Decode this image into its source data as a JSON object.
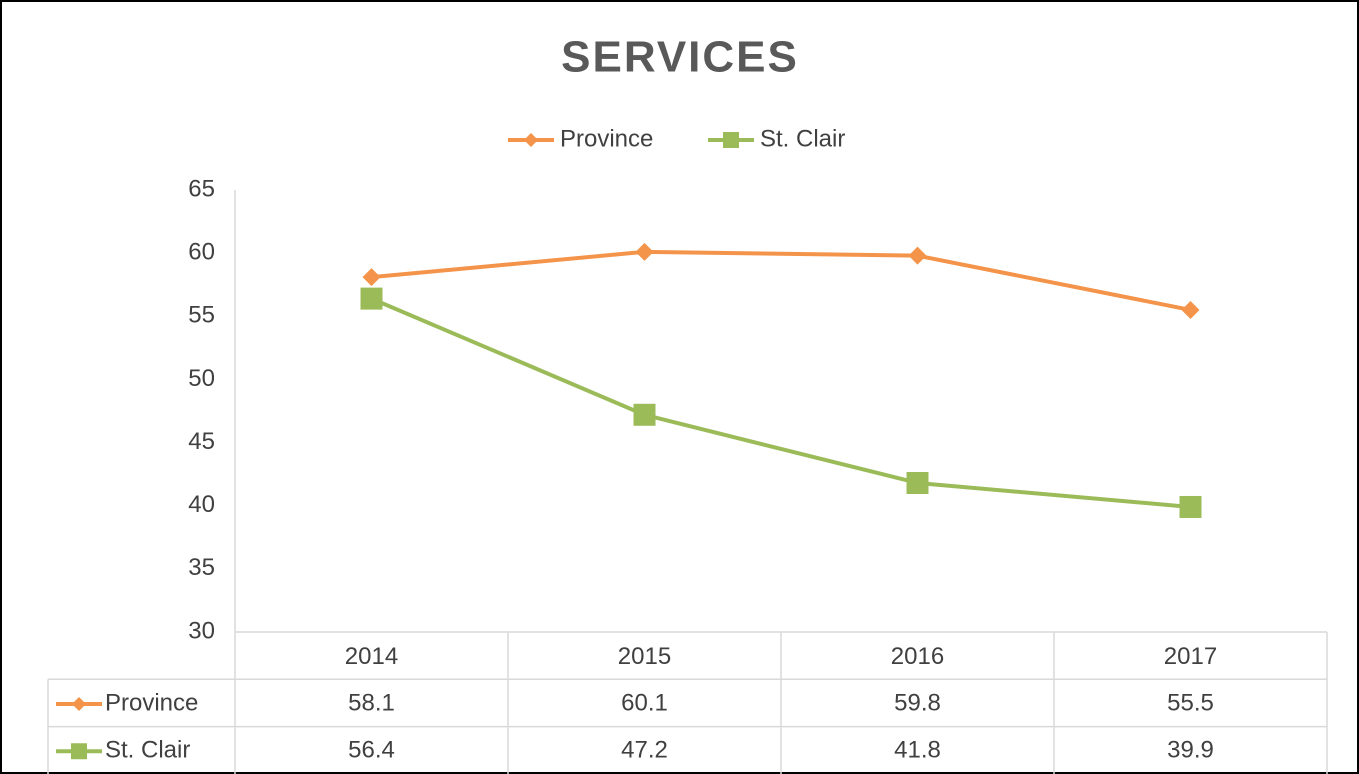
{
  "chart_data": {
    "type": "line",
    "title": "SERVICES",
    "categories": [
      "2014",
      "2015",
      "2016",
      "2017"
    ],
    "series": [
      {
        "name": "Province",
        "color": "#f4944a",
        "marker": "diamond",
        "values": [
          58.1,
          60.1,
          59.8,
          55.5
        ]
      },
      {
        "name": "St. Clair",
        "color": "#9bbb59",
        "marker": "square",
        "values": [
          56.4,
          47.2,
          41.8,
          39.9
        ]
      }
    ],
    "ylim": [
      30,
      65
    ],
    "yticks": [
      30,
      35,
      40,
      45,
      50,
      55,
      60,
      65
    ],
    "legend": "top",
    "data_table": true
  }
}
